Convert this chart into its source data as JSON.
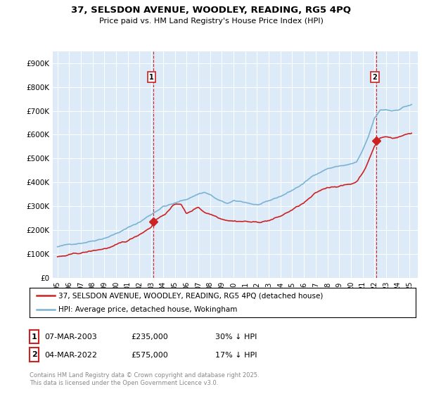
{
  "title_line1": "37, SELSDON AVENUE, WOODLEY, READING, RG5 4PQ",
  "title_line2": "Price paid vs. HM Land Registry's House Price Index (HPI)",
  "ylim": [
    0,
    950000
  ],
  "yticks": [
    0,
    100000,
    200000,
    300000,
    400000,
    500000,
    600000,
    700000,
    800000,
    900000
  ],
  "ytick_labels": [
    "£0",
    "£100K",
    "£200K",
    "£300K",
    "£400K",
    "£500K",
    "£600K",
    "£700K",
    "£800K",
    "£900K"
  ],
  "hpi_color": "#7ab3d4",
  "price_color": "#cc2222",
  "vline_color": "#cc2222",
  "background_color": "#ddeaf7",
  "legend_label_price": "37, SELSDON AVENUE, WOODLEY, READING, RG5 4PQ (detached house)",
  "legend_label_hpi": "HPI: Average price, detached house, Wokingham",
  "annotation1_date": "07-MAR-2003",
  "annotation1_price": "£235,000",
  "annotation1_hpi": "30% ↓ HPI",
  "annotation2_date": "04-MAR-2022",
  "annotation2_price": "£575,000",
  "annotation2_hpi": "17% ↓ HPI",
  "footnote": "Contains HM Land Registry data © Crown copyright and database right 2025.\nThis data is licensed under the Open Government Licence v3.0.",
  "purchase1_x": 2003.18,
  "purchase1_y": 235000,
  "purchase2_x": 2022.18,
  "purchase2_y": 575000,
  "xlim_left": 1994.6,
  "xlim_right": 2025.7
}
